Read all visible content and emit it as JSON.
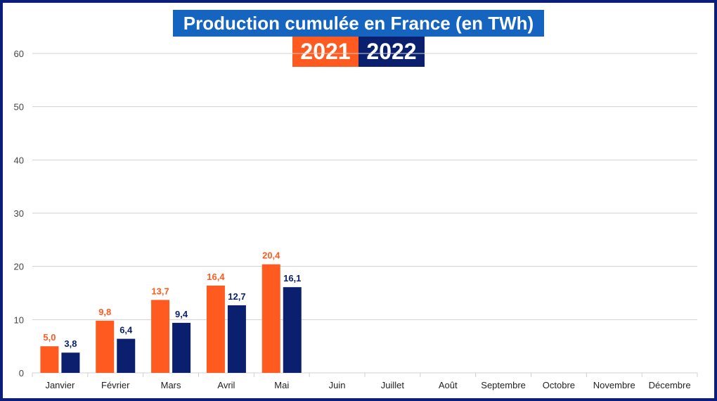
{
  "header": {
    "title": "Production cumulée en France (en TWh)",
    "legend_2021": "2021",
    "legend_2022": "2022"
  },
  "colors": {
    "series_2021": "#ff5a1f",
    "series_2022": "#0a1f6e",
    "title_bg": "#1565c0",
    "frame": "#0b1f7a",
    "grid": "#d0d0d0"
  },
  "chart_data": {
    "type": "bar",
    "title": "Production cumulée en France (en TWh)",
    "xlabel": "",
    "ylabel": "",
    "ylim": [
      0,
      60
    ],
    "yticks": [
      0,
      10,
      20,
      30,
      40,
      50,
      60
    ],
    "ytick_labels": [
      "0",
      "10",
      "20",
      "30",
      "40",
      "50",
      "60"
    ],
    "grid": true,
    "legend_placement": "top-center",
    "categories": [
      "Janvier",
      "Février",
      "Mars",
      "Avril",
      "Mai",
      "Juin",
      "Juillet",
      "Août",
      "Septembre",
      "Octobre",
      "Novembre",
      "Décembre"
    ],
    "series": [
      {
        "name": "2021",
        "values": [
          5.0,
          9.8,
          13.7,
          16.4,
          20.4,
          null,
          null,
          null,
          null,
          null,
          null,
          null
        ],
        "labels": [
          "5,0",
          "9,8",
          "13,7",
          "16,4",
          "20,4",
          "",
          "",
          "",
          "",
          "",
          "",
          ""
        ]
      },
      {
        "name": "2022",
        "values": [
          3.8,
          6.4,
          9.4,
          12.7,
          16.1,
          null,
          null,
          null,
          null,
          null,
          null,
          null
        ],
        "labels": [
          "3,8",
          "6,4",
          "9,4",
          "12,7",
          "16,1",
          "",
          "",
          "",
          "",
          "",
          "",
          ""
        ]
      }
    ]
  }
}
